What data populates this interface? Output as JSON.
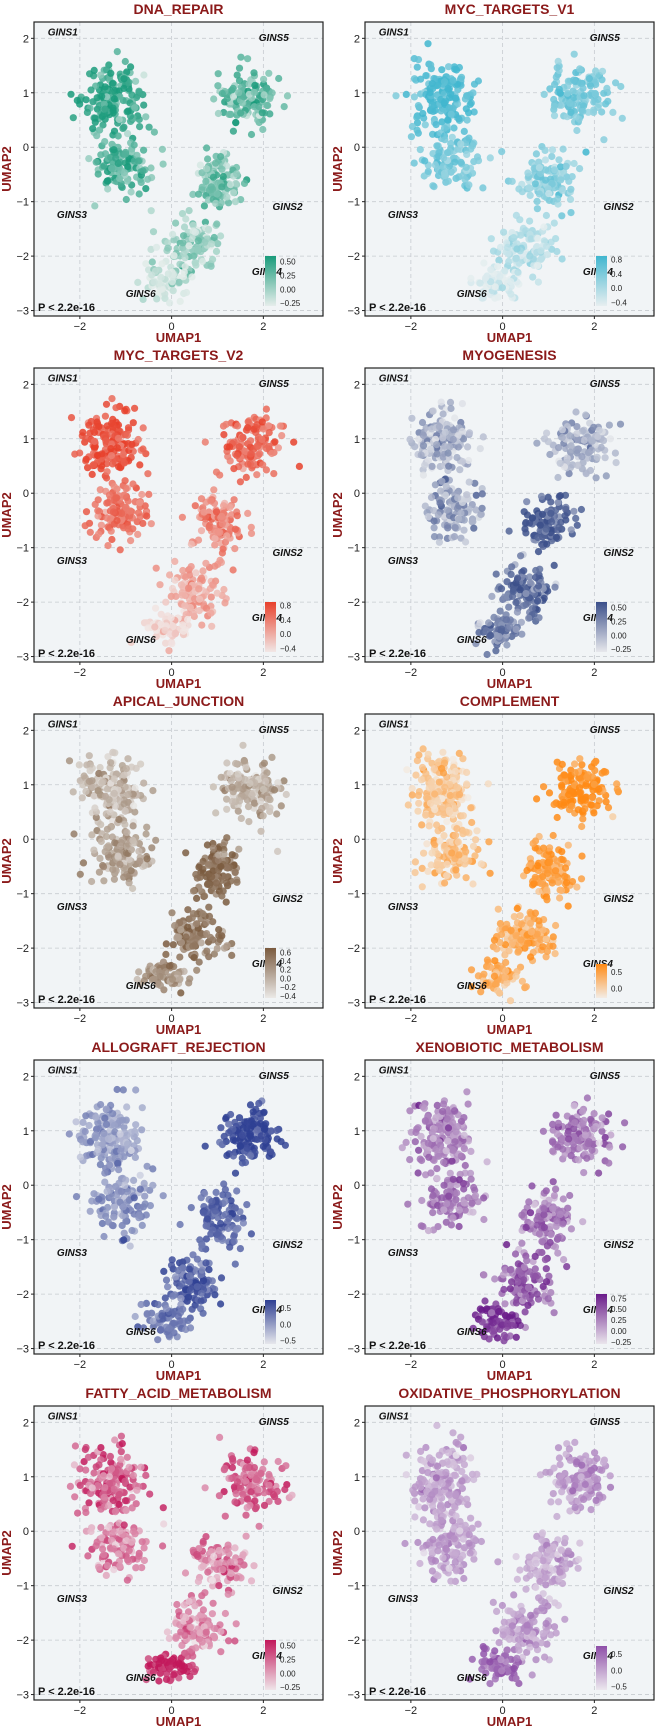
{
  "chart_data": [
    {
      "type": "scatter",
      "title": "DNA_REPAIR",
      "xlabel": "UMAP1",
      "ylabel": "UMAP2",
      "xlim": [
        -3,
        3.3
      ],
      "ylim": [
        -3.1,
        2.3
      ],
      "xticks": [
        -2,
        0,
        2
      ],
      "yticks": [
        -3,
        -2,
        -1,
        0,
        1,
        2
      ],
      "grid": true,
      "annotation": "P < 2.2e-16",
      "color": "#1a9b7b",
      "legend_position": "bottom-right",
      "legend_ticks": [
        "0.50",
        "0.25",
        "0.00",
        "−0.25"
      ],
      "legend_range": [
        -0.3,
        0.6
      ],
      "cluster_labels": [
        {
          "label": "GINS1",
          "x": -2.7,
          "y": 2.05
        },
        {
          "label": "GINS5",
          "x": 1.9,
          "y": 1.95
        },
        {
          "label": "GINS3",
          "x": -2.5,
          "y": -1.3
        },
        {
          "label": "GINS2",
          "x": 2.2,
          "y": -1.15
        },
        {
          "label": "GINS4",
          "x": 1.75,
          "y": -2.35
        },
        {
          "label": "GINS6",
          "x": -1.0,
          "y": -2.75
        }
      ],
      "clusters": [
        {
          "name": "GINS1",
          "x": -1.3,
          "y": 0.9,
          "value": 0.5
        },
        {
          "name": "GINS3",
          "x": -1.1,
          "y": -0.3,
          "value": 0.35
        },
        {
          "name": "GINS5",
          "x": 1.7,
          "y": 0.9,
          "value": 0.3
        },
        {
          "name": "GINS2",
          "x": 1.0,
          "y": -0.6,
          "value": 0.2
        },
        {
          "name": "GINS4",
          "x": 0.5,
          "y": -1.8,
          "value": 0.05
        },
        {
          "name": "GINS6",
          "x": -0.1,
          "y": -2.5,
          "value": -0.15
        }
      ]
    },
    {
      "type": "scatter",
      "title": "MYC_TARGETS_V1",
      "xlabel": "UMAP1",
      "ylabel": "UMAP2",
      "xlim": [
        -3,
        3.3
      ],
      "ylim": [
        -3.1,
        2.3
      ],
      "xticks": [
        -2,
        0,
        2
      ],
      "yticks": [
        -3,
        -2,
        -1,
        0,
        1,
        2
      ],
      "grid": true,
      "annotation": "P < 2.2e-16",
      "color": "#41b6cf",
      "legend_position": "bottom-right",
      "legend_ticks": [
        "0.8",
        "0.4",
        "0.0",
        "−0.4"
      ],
      "legend_range": [
        -0.5,
        0.9
      ],
      "cluster_labels": [
        {
          "label": "GINS1",
          "x": -2.7,
          "y": 2.05
        },
        {
          "label": "GINS5",
          "x": 1.9,
          "y": 1.95
        },
        {
          "label": "GINS3",
          "x": -2.5,
          "y": -1.3
        },
        {
          "label": "GINS2",
          "x": 2.2,
          "y": -1.15
        },
        {
          "label": "GINS4",
          "x": 1.75,
          "y": -2.35
        },
        {
          "label": "GINS6",
          "x": -1.0,
          "y": -2.75
        }
      ],
      "clusters": [
        {
          "name": "GINS1",
          "x": -1.3,
          "y": 0.9,
          "value": 0.75
        },
        {
          "name": "GINS3",
          "x": -1.1,
          "y": -0.3,
          "value": 0.45
        },
        {
          "name": "GINS5",
          "x": 1.7,
          "y": 0.9,
          "value": 0.45
        },
        {
          "name": "GINS2",
          "x": 1.0,
          "y": -0.6,
          "value": 0.3
        },
        {
          "name": "GINS4",
          "x": 0.5,
          "y": -1.8,
          "value": 0.0
        },
        {
          "name": "GINS6",
          "x": -0.1,
          "y": -2.5,
          "value": -0.3
        }
      ]
    },
    {
      "type": "scatter",
      "title": "MYC_TARGETS_V2",
      "xlabel": "UMAP1",
      "ylabel": "UMAP2",
      "xlim": [
        -3,
        3.3
      ],
      "ylim": [
        -3.1,
        2.3
      ],
      "xticks": [
        -2,
        0,
        2
      ],
      "yticks": [
        -3,
        -2,
        -1,
        0,
        1,
        2
      ],
      "grid": true,
      "annotation": "P < 2.2e-16",
      "color": "#e8412c",
      "legend_position": "bottom-right",
      "legend_ticks": [
        "0.8",
        "0.4",
        "0.0",
        "−0.4"
      ],
      "legend_range": [
        -0.5,
        0.9
      ],
      "cluster_labels": [
        {
          "label": "GINS1",
          "x": -2.7,
          "y": 2.05
        },
        {
          "label": "GINS5",
          "x": 1.9,
          "y": 1.95
        },
        {
          "label": "GINS3",
          "x": -2.5,
          "y": -1.3
        },
        {
          "label": "GINS2",
          "x": 2.2,
          "y": -1.15
        },
        {
          "label": "GINS4",
          "x": 1.75,
          "y": -2.35
        },
        {
          "label": "GINS6",
          "x": -1.0,
          "y": -2.75
        }
      ],
      "clusters": [
        {
          "name": "GINS1",
          "x": -1.3,
          "y": 0.9,
          "value": 0.75
        },
        {
          "name": "GINS3",
          "x": -1.1,
          "y": -0.3,
          "value": 0.5
        },
        {
          "name": "GINS5",
          "x": 1.7,
          "y": 0.9,
          "value": 0.55
        },
        {
          "name": "GINS2",
          "x": 1.0,
          "y": -0.6,
          "value": 0.3
        },
        {
          "name": "GINS4",
          "x": 0.5,
          "y": -1.8,
          "value": 0.05
        },
        {
          "name": "GINS6",
          "x": -0.1,
          "y": -2.5,
          "value": -0.3
        }
      ]
    },
    {
      "type": "scatter",
      "title": "MYOGENESIS",
      "xlabel": "UMAP1",
      "ylabel": "UMAP2",
      "xlim": [
        -3,
        3.3
      ],
      "ylim": [
        -3.1,
        2.3
      ],
      "xticks": [
        -2,
        0,
        2
      ],
      "yticks": [
        -3,
        -2,
        -1,
        0,
        1,
        2
      ],
      "grid": true,
      "annotation": "P < 2.2e-16",
      "color": "#3b4f8a",
      "legend_position": "bottom-right",
      "legend_ticks": [
        "0.50",
        "0.25",
        "0.00",
        "−0.25"
      ],
      "legend_range": [
        -0.3,
        0.6
      ],
      "cluster_labels": [
        {
          "label": "GINS1",
          "x": -2.7,
          "y": 2.05
        },
        {
          "label": "GINS5",
          "x": 1.9,
          "y": 1.95
        },
        {
          "label": "GINS3",
          "x": -2.5,
          "y": -1.3
        },
        {
          "label": "GINS2",
          "x": 2.2,
          "y": -1.15
        },
        {
          "label": "GINS4",
          "x": 1.75,
          "y": -2.35
        },
        {
          "label": "GINS6",
          "x": -1.0,
          "y": -2.75
        }
      ],
      "clusters": [
        {
          "name": "GINS1",
          "x": -1.3,
          "y": 0.9,
          "value": 0.05
        },
        {
          "name": "GINS3",
          "x": -1.1,
          "y": -0.3,
          "value": 0.1
        },
        {
          "name": "GINS5",
          "x": 1.7,
          "y": 0.9,
          "value": 0.05
        },
        {
          "name": "GINS2",
          "x": 1.0,
          "y": -0.6,
          "value": 0.5
        },
        {
          "name": "GINS4",
          "x": 0.5,
          "y": -1.8,
          "value": 0.45
        },
        {
          "name": "GINS6",
          "x": -0.1,
          "y": -2.5,
          "value": 0.3
        }
      ]
    },
    {
      "type": "scatter",
      "title": "APICAL_JUNCTION",
      "xlabel": "UMAP1",
      "ylabel": "UMAP2",
      "xlim": [
        -3,
        3.3
      ],
      "ylim": [
        -3.1,
        2.3
      ],
      "xticks": [
        -2,
        0,
        2
      ],
      "yticks": [
        -3,
        -2,
        -1,
        0,
        1,
        2
      ],
      "grid": true,
      "annotation": "P < 2.2e-16",
      "color": "#7a5a3e",
      "legend_position": "bottom-right",
      "legend_ticks": [
        "0.6",
        "0.4",
        "0.2",
        "0.0",
        "−0.2",
        "−0.4"
      ],
      "legend_range": [
        -0.45,
        0.7
      ],
      "cluster_labels": [
        {
          "label": "GINS1",
          "x": -2.7,
          "y": 2.05
        },
        {
          "label": "GINS5",
          "x": 1.9,
          "y": 1.95
        },
        {
          "label": "GINS3",
          "x": -2.5,
          "y": -1.3
        },
        {
          "label": "GINS2",
          "x": 2.2,
          "y": -1.15
        },
        {
          "label": "GINS4",
          "x": 1.75,
          "y": -2.35
        },
        {
          "label": "GINS6",
          "x": -1.0,
          "y": -2.75
        }
      ],
      "clusters": [
        {
          "name": "GINS1",
          "x": -1.3,
          "y": 0.9,
          "value": 0.0
        },
        {
          "name": "GINS3",
          "x": -1.1,
          "y": -0.3,
          "value": 0.2
        },
        {
          "name": "GINS5",
          "x": 1.7,
          "y": 0.9,
          "value": 0.1
        },
        {
          "name": "GINS2",
          "x": 1.0,
          "y": -0.6,
          "value": 0.55
        },
        {
          "name": "GINS4",
          "x": 0.5,
          "y": -1.8,
          "value": 0.45
        },
        {
          "name": "GINS6",
          "x": -0.1,
          "y": -2.5,
          "value": 0.3
        }
      ]
    },
    {
      "type": "scatter",
      "title": "COMPLEMENT",
      "xlabel": "UMAP1",
      "ylabel": "UMAP2",
      "xlim": [
        -3,
        3.3
      ],
      "ylim": [
        -3.1,
        2.3
      ],
      "xticks": [
        -2,
        0,
        2
      ],
      "yticks": [
        -3,
        -2,
        -1,
        0,
        1,
        2
      ],
      "grid": true,
      "annotation": "P < 2.2e-16",
      "color": "#ff8a14",
      "legend_position": "bottom-right",
      "legend_ticks": [
        "0.5",
        "0.0"
      ],
      "legend_range": [
        -0.3,
        0.75
      ],
      "cluster_labels": [
        {
          "label": "GINS1",
          "x": -2.7,
          "y": 2.05
        },
        {
          "label": "GINS5",
          "x": 1.9,
          "y": 1.95
        },
        {
          "label": "GINS3",
          "x": -2.5,
          "y": -1.3
        },
        {
          "label": "GINS2",
          "x": 2.2,
          "y": -1.15
        },
        {
          "label": "GINS4",
          "x": 1.75,
          "y": -2.35
        },
        {
          "label": "GINS6",
          "x": -1.0,
          "y": -2.75
        }
      ],
      "clusters": [
        {
          "name": "GINS1",
          "x": -1.3,
          "y": 0.9,
          "value": 0.1
        },
        {
          "name": "GINS3",
          "x": -1.1,
          "y": -0.3,
          "value": 0.2
        },
        {
          "name": "GINS5",
          "x": 1.7,
          "y": 0.9,
          "value": 0.7
        },
        {
          "name": "GINS2",
          "x": 1.0,
          "y": -0.6,
          "value": 0.5
        },
        {
          "name": "GINS4",
          "x": 0.5,
          "y": -1.8,
          "value": 0.45
        },
        {
          "name": "GINS6",
          "x": -0.1,
          "y": -2.5,
          "value": 0.35
        }
      ]
    },
    {
      "type": "scatter",
      "title": "ALLOGRAFT_REJECTION",
      "xlabel": "UMAP1",
      "ylabel": "UMAP2",
      "xlim": [
        -3,
        3.3
      ],
      "ylim": [
        -3.1,
        2.3
      ],
      "xticks": [
        -2,
        0,
        2
      ],
      "yticks": [
        -3,
        -2,
        -1,
        0,
        1,
        2
      ],
      "grid": true,
      "annotation": "P < 2.2e-16",
      "color": "#2e3f93",
      "legend_position": "bottom-right",
      "legend_ticks": [
        "0.5",
        "0.0",
        "−0.5"
      ],
      "legend_range": [
        -0.6,
        0.75
      ],
      "cluster_labels": [
        {
          "label": "GINS1",
          "x": -2.7,
          "y": 2.05
        },
        {
          "label": "GINS5",
          "x": 1.9,
          "y": 1.95
        },
        {
          "label": "GINS3",
          "x": -2.5,
          "y": -1.3
        },
        {
          "label": "GINS2",
          "x": 2.2,
          "y": -1.15
        },
        {
          "label": "GINS4",
          "x": 1.75,
          "y": -2.35
        },
        {
          "label": "GINS6",
          "x": -1.0,
          "y": -2.75
        }
      ],
      "clusters": [
        {
          "name": "GINS1",
          "x": -1.3,
          "y": 0.9,
          "value": 0.0
        },
        {
          "name": "GINS3",
          "x": -1.1,
          "y": -0.3,
          "value": 0.15
        },
        {
          "name": "GINS5",
          "x": 1.7,
          "y": 0.9,
          "value": 0.7
        },
        {
          "name": "GINS2",
          "x": 1.0,
          "y": -0.6,
          "value": 0.45
        },
        {
          "name": "GINS4",
          "x": 0.5,
          "y": -1.8,
          "value": 0.5
        },
        {
          "name": "GINS6",
          "x": -0.1,
          "y": -2.5,
          "value": 0.3
        }
      ]
    },
    {
      "type": "scatter",
      "title": "XENOBIOTIC_METABOLISM",
      "xlabel": "UMAP1",
      "ylabel": "UMAP2",
      "xlim": [
        -3,
        3.3
      ],
      "ylim": [
        -3.1,
        2.3
      ],
      "xticks": [
        -2,
        0,
        2
      ],
      "yticks": [
        -3,
        -2,
        -1,
        0,
        1,
        2
      ],
      "grid": true,
      "annotation": "P < 2.2e-16",
      "color": "#6a1b8a",
      "legend_position": "bottom-right",
      "legend_ticks": [
        "0.75",
        "0.50",
        "0.25",
        "0.00",
        "−0.25"
      ],
      "legend_range": [
        -0.3,
        0.85
      ],
      "cluster_labels": [
        {
          "label": "GINS1",
          "x": -2.7,
          "y": 2.05
        },
        {
          "label": "GINS5",
          "x": 1.9,
          "y": 1.95
        },
        {
          "label": "GINS3",
          "x": -2.5,
          "y": -1.3
        },
        {
          "label": "GINS2",
          "x": 2.2,
          "y": -1.15
        },
        {
          "label": "GINS4",
          "x": 1.75,
          "y": -2.35
        },
        {
          "label": "GINS6",
          "x": -1.0,
          "y": -2.75
        }
      ],
      "clusters": [
        {
          "name": "GINS1",
          "x": -1.3,
          "y": 0.9,
          "value": 0.3
        },
        {
          "name": "GINS3",
          "x": -1.1,
          "y": -0.3,
          "value": 0.35
        },
        {
          "name": "GINS5",
          "x": 1.7,
          "y": 0.9,
          "value": 0.3
        },
        {
          "name": "GINS2",
          "x": 1.0,
          "y": -0.6,
          "value": 0.35
        },
        {
          "name": "GINS4",
          "x": 0.5,
          "y": -1.8,
          "value": 0.45
        },
        {
          "name": "GINS6",
          "x": -0.1,
          "y": -2.5,
          "value": 0.75
        }
      ]
    },
    {
      "type": "scatter",
      "title": "FATTY_ACID_METABOLISM",
      "xlabel": "UMAP1",
      "ylabel": "UMAP2",
      "xlim": [
        -3,
        3.3
      ],
      "ylim": [
        -3.1,
        2.3
      ],
      "xticks": [
        -2,
        0,
        2
      ],
      "yticks": [
        -3,
        -2,
        -1,
        0,
        1,
        2
      ],
      "grid": true,
      "annotation": "P < 2.2e-16",
      "color": "#c2185b",
      "legend_position": "bottom-right",
      "legend_ticks": [
        "0.50",
        "0.25",
        "0.00",
        "−0.25"
      ],
      "legend_range": [
        -0.3,
        0.6
      ],
      "cluster_labels": [
        {
          "label": "GINS1",
          "x": -2.7,
          "y": 2.05
        },
        {
          "label": "GINS5",
          "x": 1.9,
          "y": 1.95
        },
        {
          "label": "GINS3",
          "x": -2.5,
          "y": -1.3
        },
        {
          "label": "GINS2",
          "x": 2.2,
          "y": -1.15
        },
        {
          "label": "GINS4",
          "x": 1.75,
          "y": -2.35
        },
        {
          "label": "GINS6",
          "x": -1.0,
          "y": -2.75
        }
      ],
      "clusters": [
        {
          "name": "GINS1",
          "x": -1.3,
          "y": 0.9,
          "value": 0.3
        },
        {
          "name": "GINS3",
          "x": -1.1,
          "y": -0.3,
          "value": 0.15
        },
        {
          "name": "GINS5",
          "x": 1.7,
          "y": 0.9,
          "value": 0.3
        },
        {
          "name": "GINS2",
          "x": 1.0,
          "y": -0.6,
          "value": 0.15
        },
        {
          "name": "GINS4",
          "x": 0.5,
          "y": -1.8,
          "value": 0.1
        },
        {
          "name": "GINS6",
          "x": -0.1,
          "y": -2.5,
          "value": 0.55
        }
      ]
    },
    {
      "type": "scatter",
      "title": "OXIDATIVE_PHOSPHORYLATION",
      "xlabel": "UMAP1",
      "ylabel": "UMAP2",
      "xlim": [
        -3,
        3.3
      ],
      "ylim": [
        -3.1,
        2.3
      ],
      "xticks": [
        -2,
        0,
        2
      ],
      "yticks": [
        -3,
        -2,
        -1,
        0,
        1,
        2
      ],
      "grid": true,
      "annotation": "P < 2.2e-16",
      "color": "#8e4fa8",
      "legend_position": "bottom-right",
      "legend_ticks": [
        "0.5",
        "0.0",
        "−0.5"
      ],
      "legend_range": [
        -0.6,
        0.75
      ],
      "cluster_labels": [
        {
          "label": "GINS1",
          "x": -2.7,
          "y": 2.05
        },
        {
          "label": "GINS5",
          "x": 1.9,
          "y": 1.95
        },
        {
          "label": "GINS3",
          "x": -2.5,
          "y": -1.3
        },
        {
          "label": "GINS2",
          "x": 2.2,
          "y": -1.15
        },
        {
          "label": "GINS4",
          "x": 1.75,
          "y": -2.35
        },
        {
          "label": "GINS6",
          "x": -1.0,
          "y": -2.75
        }
      ],
      "clusters": [
        {
          "name": "GINS1",
          "x": -1.3,
          "y": 0.9,
          "value": 0.05
        },
        {
          "name": "GINS3",
          "x": -1.1,
          "y": -0.3,
          "value": 0.1
        },
        {
          "name": "GINS5",
          "x": 1.7,
          "y": 0.9,
          "value": 0.15
        },
        {
          "name": "GINS2",
          "x": 1.0,
          "y": -0.6,
          "value": 0.0
        },
        {
          "name": "GINS4",
          "x": 0.5,
          "y": -1.8,
          "value": 0.1
        },
        {
          "name": "GINS6",
          "x": -0.1,
          "y": -2.5,
          "value": 0.55
        }
      ]
    }
  ]
}
